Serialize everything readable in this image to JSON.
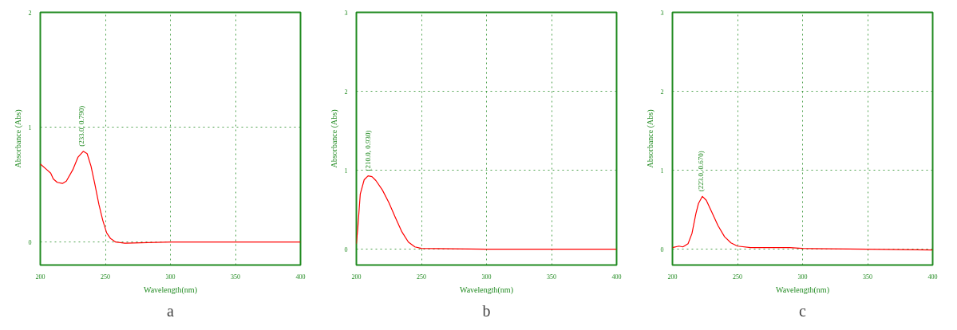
{
  "chart_data": [
    {
      "type": "line",
      "title": "a",
      "xlabel": "Wavelength(nm)",
      "ylabel": "Absorbance (Abs)",
      "xlim": [
        200,
        400
      ],
      "ylim": [
        -0.2,
        2
      ],
      "xticks": [
        200,
        250,
        300,
        350,
        400
      ],
      "yticks": [
        0,
        1,
        2
      ],
      "grid": true,
      "marker": "none",
      "line_style": "solid",
      "series": [
        {
          "color": "#ff0000",
          "x": [
            200,
            205,
            208,
            210,
            213,
            217,
            220,
            225,
            229,
            233,
            236,
            239,
            242,
            245,
            248,
            251,
            254,
            258,
            265,
            300,
            400
          ],
          "values": [
            0.68,
            0.63,
            0.6,
            0.55,
            0.52,
            0.51,
            0.53,
            0.63,
            0.74,
            0.79,
            0.77,
            0.66,
            0.5,
            0.33,
            0.19,
            0.08,
            0.03,
            0.0,
            -0.01,
            0.0,
            0.0
          ]
        }
      ],
      "annotations": [
        {
          "text": "(233.0, 0.790)",
          "x": 233,
          "y": 0.79
        }
      ]
    },
    {
      "type": "line",
      "title": "b",
      "xlabel": "Wavelength(nm)",
      "ylabel": "Absorbance (Abs)",
      "xlim": [
        200,
        400
      ],
      "ylim": [
        -0.2,
        3
      ],
      "xticks": [
        200,
        250,
        300,
        350,
        400
      ],
      "yticks": [
        0,
        1,
        2,
        3
      ],
      "grid": true,
      "marker": "none",
      "line_style": "solid",
      "series": [
        {
          "color": "#ff0000",
          "x": [
            200,
            201,
            203,
            206,
            209,
            212,
            215,
            220,
            225,
            230,
            235,
            240,
            245,
            250,
            300,
            400
          ],
          "values": [
            0.07,
            0.25,
            0.7,
            0.88,
            0.93,
            0.92,
            0.87,
            0.75,
            0.59,
            0.4,
            0.22,
            0.09,
            0.03,
            0.01,
            0.0,
            0.0
          ]
        }
      ],
      "annotations": [
        {
          "text": "(210.0, 0.930)",
          "x": 210,
          "y": 0.93
        }
      ]
    },
    {
      "type": "line",
      "title": "c",
      "xlabel": "Wavelength(nm)",
      "ylabel": "Absorbance (Abs)",
      "xlim": [
        200,
        400
      ],
      "ylim": [
        -0.2,
        3
      ],
      "xticks": [
        200,
        250,
        300,
        350,
        400
      ],
      "yticks": [
        0,
        1,
        2,
        3
      ],
      "grid": true,
      "marker": "none",
      "line_style": "solid",
      "series": [
        {
          "color": "#ff0000",
          "x": [
            200,
            205,
            208,
            212,
            215,
            218,
            220,
            223,
            226,
            230,
            235,
            240,
            245,
            250,
            260,
            275,
            290,
            300,
            350,
            400
          ],
          "values": [
            0.02,
            0.04,
            0.03,
            0.07,
            0.2,
            0.45,
            0.58,
            0.67,
            0.62,
            0.48,
            0.3,
            0.16,
            0.08,
            0.04,
            0.02,
            0.02,
            0.02,
            0.01,
            0.0,
            -0.01
          ]
        }
      ],
      "annotations": [
        {
          "text": "(223.0, 0.670)",
          "x": 223,
          "y": 0.67
        }
      ]
    }
  ]
}
